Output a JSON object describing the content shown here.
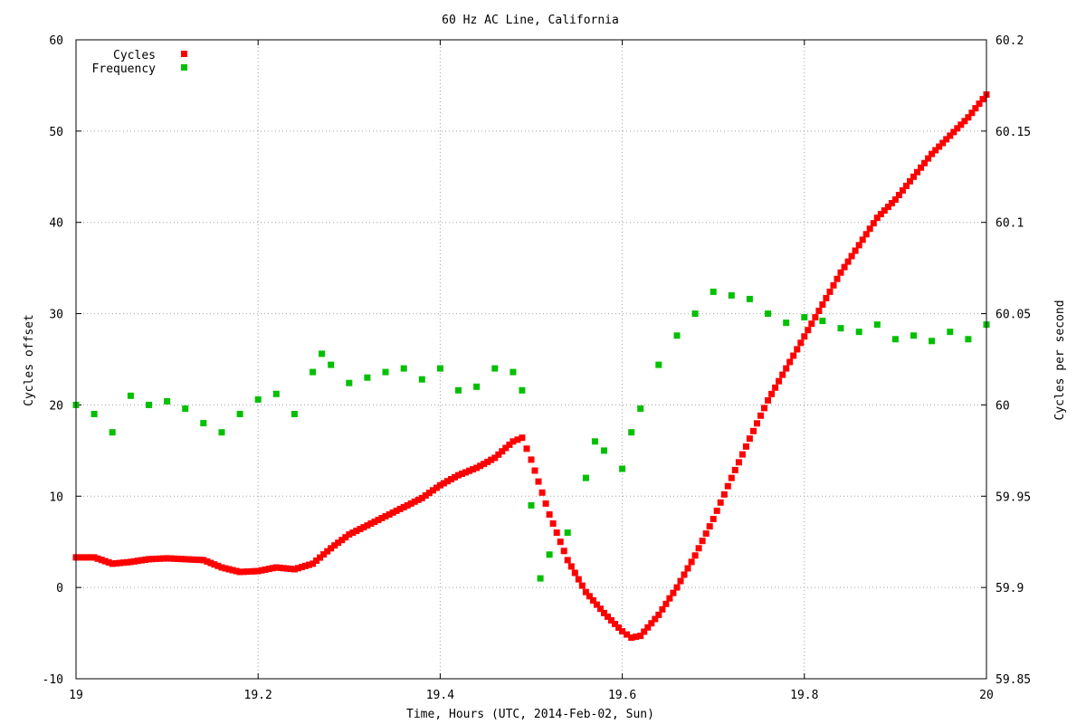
{
  "chart_data": {
    "type": "scatter",
    "title": "60 Hz AC Line, California",
    "xlabel": "Time, Hours (UTC, 2014-Feb-02, Sun)",
    "ylabel": "Cycles offset",
    "y2label": "Cycles per second",
    "xlim": [
      19,
      20
    ],
    "ylim": [
      -10,
      60
    ],
    "y2lim": [
      59.85,
      60.2
    ],
    "xticks": [
      19,
      19.2,
      19.4,
      19.6,
      19.8,
      20
    ],
    "xtick_labels": [
      "19",
      "19.2",
      "19.4",
      "19.6",
      "19.8",
      "20"
    ],
    "yticks": [
      -10,
      0,
      10,
      20,
      30,
      40,
      50,
      60
    ],
    "ytick_labels": [
      "-10",
      "0",
      "10",
      "20",
      "30",
      "40",
      "50",
      "60"
    ],
    "y2ticks": [
      59.85,
      59.9,
      59.95,
      60,
      60.05,
      60.1,
      60.15,
      60.2
    ],
    "y2tick_labels": [
      "59.85",
      "59.9",
      "59.95",
      "60",
      "60.05",
      "60.1",
      "60.15",
      "60.2"
    ],
    "grid": true,
    "legend_position": "top-left",
    "series": [
      {
        "name": "Cycles",
        "axis": "left",
        "color": "#ff0000",
        "points": [
          [
            19.0,
            3.3
          ],
          [
            19.02,
            3.3
          ],
          [
            19.04,
            2.6
          ],
          [
            19.06,
            2.8
          ],
          [
            19.08,
            3.1
          ],
          [
            19.1,
            3.2
          ],
          [
            19.12,
            3.1
          ],
          [
            19.14,
            3.0
          ],
          [
            19.16,
            2.2
          ],
          [
            19.18,
            1.7
          ],
          [
            19.2,
            1.8
          ],
          [
            19.22,
            2.2
          ],
          [
            19.24,
            2.0
          ],
          [
            19.26,
            2.6
          ],
          [
            19.28,
            4.3
          ],
          [
            19.3,
            5.8
          ],
          [
            19.32,
            6.8
          ],
          [
            19.34,
            7.8
          ],
          [
            19.36,
            8.8
          ],
          [
            19.38,
            9.8
          ],
          [
            19.4,
            11.2
          ],
          [
            19.42,
            12.3
          ],
          [
            19.44,
            13.1
          ],
          [
            19.46,
            14.2
          ],
          [
            19.48,
            16.0
          ],
          [
            19.49,
            16.4
          ],
          [
            19.5,
            14.0
          ],
          [
            19.52,
            8.0
          ],
          [
            19.54,
            3.0
          ],
          [
            19.56,
            -0.5
          ],
          [
            19.58,
            -2.8
          ],
          [
            19.6,
            -4.8
          ],
          [
            19.61,
            -5.5
          ],
          [
            19.62,
            -5.3
          ],
          [
            19.64,
            -3.0
          ],
          [
            19.66,
            0.0
          ],
          [
            19.68,
            3.5
          ],
          [
            19.7,
            7.5
          ],
          [
            19.72,
            12.0
          ],
          [
            19.74,
            16.3
          ],
          [
            19.76,
            20.5
          ],
          [
            19.78,
            24.0
          ],
          [
            19.8,
            27.5
          ],
          [
            19.82,
            31.0
          ],
          [
            19.84,
            34.5
          ],
          [
            19.86,
            37.5
          ],
          [
            19.88,
            40.5
          ],
          [
            19.9,
            42.5
          ],
          [
            19.92,
            45.0
          ],
          [
            19.94,
            47.5
          ],
          [
            19.96,
            49.5
          ],
          [
            19.98,
            51.5
          ],
          [
            20.0,
            54.0
          ]
        ]
      },
      {
        "name": "Frequency",
        "axis": "right",
        "color": "#00c000",
        "points": [
          [
            19.0,
            60.0
          ],
          [
            19.02,
            59.995
          ],
          [
            19.04,
            59.985
          ],
          [
            19.06,
            60.005
          ],
          [
            19.08,
            60.0
          ],
          [
            19.1,
            60.002
          ],
          [
            19.12,
            59.998
          ],
          [
            19.14,
            59.99
          ],
          [
            19.16,
            59.985
          ],
          [
            19.18,
            59.995
          ],
          [
            19.2,
            60.003
          ],
          [
            19.22,
            60.006
          ],
          [
            19.24,
            59.995
          ],
          [
            19.26,
            60.018
          ],
          [
            19.27,
            60.028
          ],
          [
            19.28,
            60.022
          ],
          [
            19.3,
            60.012
          ],
          [
            19.32,
            60.015
          ],
          [
            19.34,
            60.018
          ],
          [
            19.36,
            60.02
          ],
          [
            19.38,
            60.014
          ],
          [
            19.4,
            60.02
          ],
          [
            19.42,
            60.008
          ],
          [
            19.44,
            60.01
          ],
          [
            19.46,
            60.02
          ],
          [
            19.48,
            60.018
          ],
          [
            19.49,
            60.008
          ],
          [
            19.5,
            59.945
          ],
          [
            19.51,
            59.905
          ],
          [
            19.52,
            59.918
          ],
          [
            19.54,
            59.93
          ],
          [
            19.56,
            59.96
          ],
          [
            19.57,
            59.98
          ],
          [
            19.58,
            59.975
          ],
          [
            19.6,
            59.965
          ],
          [
            19.61,
            59.985
          ],
          [
            19.62,
            59.998
          ],
          [
            19.64,
            60.022
          ],
          [
            19.66,
            60.038
          ],
          [
            19.68,
            60.05
          ],
          [
            19.7,
            60.062
          ],
          [
            19.72,
            60.06
          ],
          [
            19.74,
            60.058
          ],
          [
            19.76,
            60.05
          ],
          [
            19.78,
            60.045
          ],
          [
            19.8,
            60.048
          ],
          [
            19.82,
            60.046
          ],
          [
            19.84,
            60.042
          ],
          [
            19.86,
            60.04
          ],
          [
            19.88,
            60.044
          ],
          [
            19.9,
            60.036
          ],
          [
            19.92,
            60.038
          ],
          [
            19.94,
            60.035
          ],
          [
            19.96,
            60.04
          ],
          [
            19.98,
            60.036
          ],
          [
            20.0,
            60.044
          ]
        ]
      }
    ]
  }
}
